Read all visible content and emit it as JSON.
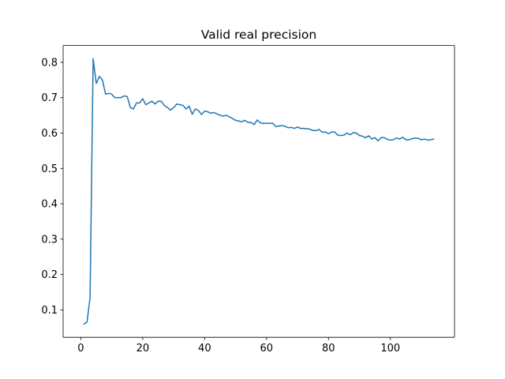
{
  "chart_data": {
    "type": "line",
    "title": "Valid real precision",
    "xlabel": "",
    "ylabel": "",
    "xlim": [
      -5.7,
      120.7
    ],
    "ylim": [
      0.0225,
      0.8475
    ],
    "xticks": [
      0,
      20,
      40,
      60,
      80,
      100
    ],
    "yticks": [
      0.1,
      0.2,
      0.3,
      0.4,
      0.5,
      0.6,
      0.7,
      0.8
    ],
    "grid": false,
    "line_color": "#1f77b4",
    "x": [
      1,
      2,
      3,
      4,
      5,
      6,
      7,
      8,
      9,
      10,
      11,
      12,
      13,
      14,
      15,
      16,
      17,
      18,
      19,
      20,
      21,
      22,
      23,
      24,
      25,
      26,
      27,
      28,
      29,
      30,
      31,
      32,
      33,
      34,
      35,
      36,
      37,
      38,
      39,
      40,
      41,
      42,
      43,
      44,
      45,
      46,
      47,
      48,
      49,
      50,
      51,
      52,
      53,
      54,
      55,
      56,
      57,
      58,
      59,
      60,
      61,
      62,
      63,
      64,
      65,
      66,
      67,
      68,
      69,
      70,
      71,
      72,
      73,
      74,
      75,
      76,
      77,
      78,
      79,
      80,
      81,
      82,
      83,
      84,
      85,
      86,
      87,
      88,
      89,
      90,
      91,
      92,
      93,
      94,
      95,
      96,
      97,
      98,
      99,
      100,
      101,
      102,
      103,
      104,
      105,
      106,
      107,
      108,
      109,
      110,
      111,
      112,
      113,
      114
    ],
    "y": [
      0.06,
      0.065,
      0.135,
      0.81,
      0.74,
      0.76,
      0.75,
      0.71,
      0.712,
      0.71,
      0.7,
      0.7,
      0.7,
      0.705,
      0.703,
      0.672,
      0.668,
      0.685,
      0.685,
      0.697,
      0.68,
      0.685,
      0.69,
      0.682,
      0.69,
      0.69,
      0.678,
      0.672,
      0.665,
      0.672,
      0.682,
      0.68,
      0.678,
      0.668,
      0.676,
      0.653,
      0.668,
      0.664,
      0.652,
      0.662,
      0.66,
      0.656,
      0.658,
      0.654,
      0.65,
      0.648,
      0.65,
      0.646,
      0.641,
      0.636,
      0.634,
      0.632,
      0.636,
      0.63,
      0.63,
      0.624,
      0.637,
      0.629,
      0.627,
      0.628,
      0.627,
      0.628,
      0.618,
      0.62,
      0.621,
      0.619,
      0.615,
      0.616,
      0.613,
      0.617,
      0.613,
      0.613,
      0.612,
      0.611,
      0.607,
      0.607,
      0.61,
      0.602,
      0.603,
      0.598,
      0.603,
      0.603,
      0.594,
      0.593,
      0.594,
      0.6,
      0.595,
      0.601,
      0.6,
      0.593,
      0.591,
      0.587,
      0.592,
      0.583,
      0.587,
      0.578,
      0.587,
      0.587,
      0.582,
      0.58,
      0.581,
      0.586,
      0.583,
      0.588,
      0.581,
      0.581,
      0.584,
      0.586,
      0.585,
      0.581,
      0.583,
      0.58,
      0.581,
      0.583
    ]
  }
}
